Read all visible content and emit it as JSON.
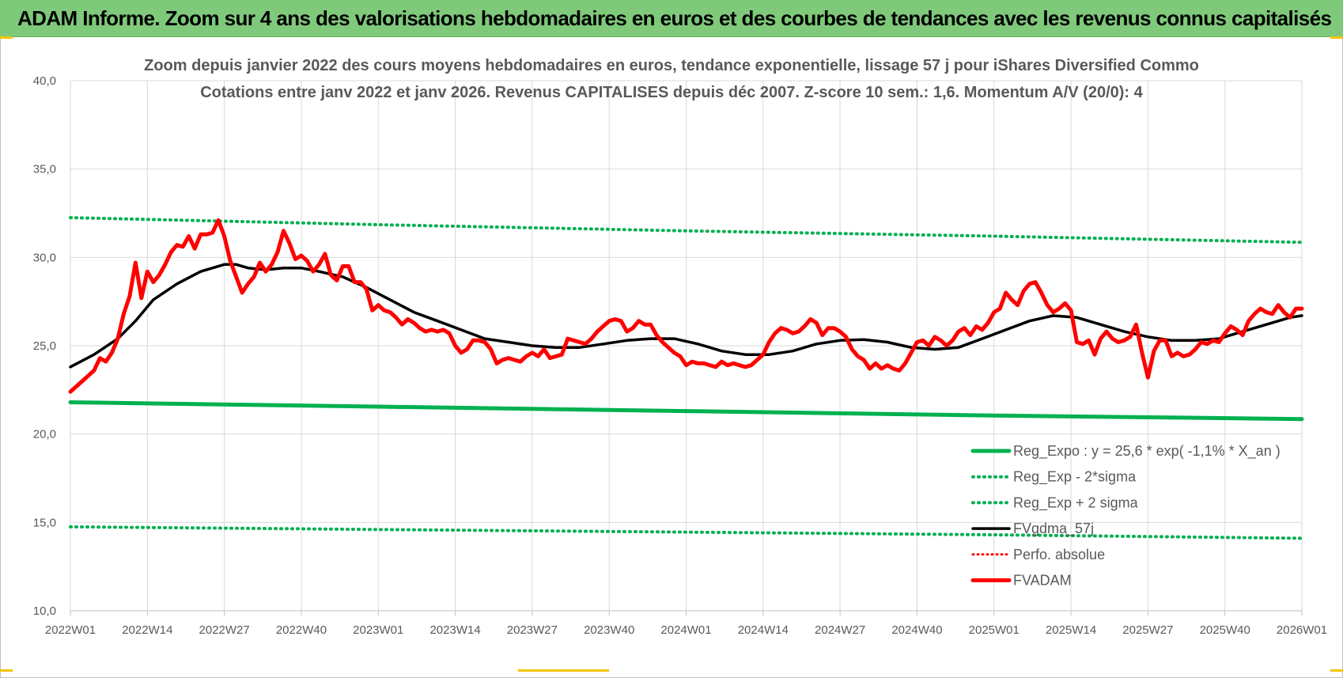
{
  "header": {
    "title": "ADAM Informe. Zoom sur 4 ans des valorisations hebdomadaires en euros et des courbes de tendances avec les revenus connus capitalisés"
  },
  "colors": {
    "banner": "#7fc97a",
    "trend_green": "#00b050",
    "smooth_black": "#000000",
    "price_red": "#ff0000",
    "grid": "#d9d9d9",
    "text": "#595959"
  },
  "chart_data": {
    "type": "line",
    "title_lines": [
      "Zoom depuis janvier 2022 des cours moyens hebdomadaires en euros, tendance exponentielle, lissage 57 j pour iShares Diversified Commo",
      "Cotations entre janv 2022 et janv 2026. Revenus CAPITALISES depuis déc 2007. Z-score 10 sem.: 1,6. Momentum A/V (20/0): 4"
    ],
    "y_range": [
      10,
      40
    ],
    "y_ticks": [
      "10,0",
      "15,0",
      "20,0",
      "25,0",
      "30,0",
      "35,0",
      "40,0"
    ],
    "x_ticks": [
      "2022W01",
      "2022W14",
      "2022W27",
      "2022W40",
      "2023W01",
      "2023W14",
      "2023W27",
      "2023W40",
      "2024W01",
      "2024W14",
      "2024W27",
      "2024W40",
      "2025W01",
      "2025W14",
      "2025W27",
      "2025W40",
      "2026W01"
    ],
    "x_range_weeks": [
      0,
      208
    ],
    "grid": "vertical and horizontal",
    "legend_position": "bottom-right",
    "legend": [
      {
        "label": "Reg_Expo : y = 25,6 * exp( -1,1% *  X_an )",
        "style": "solid-thick",
        "color": "#00b050"
      },
      {
        "label": "Reg_Exp - 2*sigma",
        "style": "dotted",
        "color": "#00b050"
      },
      {
        "label": "Reg_Exp + 2 sigma",
        "style": "dotted",
        "color": "#00b050"
      },
      {
        "label": "FVgdma_57j",
        "style": "solid",
        "color": "#000000"
      },
      {
        "label": "Perfo. absolue",
        "style": "dotted",
        "color": "#ff0000"
      },
      {
        "label": "FVADAM",
        "style": "solid-thick",
        "color": "#ff0000"
      }
    ],
    "series": [
      {
        "name": "Reg_Expo : y = 25,6 * exp( -1,1% *  X_an )",
        "points": [
          [
            0,
            21.8
          ],
          [
            52,
            21.55
          ],
          [
            104,
            21.3
          ],
          [
            156,
            21.05
          ],
          [
            208,
            20.85
          ]
        ]
      },
      {
        "name": "Reg_Exp - 2*sigma",
        "points": [
          [
            0,
            14.75
          ],
          [
            52,
            14.6
          ],
          [
            104,
            14.45
          ],
          [
            156,
            14.3
          ],
          [
            208,
            14.1
          ]
        ]
      },
      {
        "name": "Reg_Exp + 2 sigma",
        "points": [
          [
            0,
            32.25
          ],
          [
            52,
            31.85
          ],
          [
            104,
            31.5
          ],
          [
            156,
            31.2
          ],
          [
            208,
            30.85
          ]
        ]
      },
      {
        "name": "FVgdma_57j",
        "points": [
          [
            0,
            23.8
          ],
          [
            4,
            24.5
          ],
          [
            8,
            25.4
          ],
          [
            11,
            26.4
          ],
          [
            14,
            27.6
          ],
          [
            18,
            28.5
          ],
          [
            22,
            29.2
          ],
          [
            26,
            29.6
          ],
          [
            28,
            29.6
          ],
          [
            30,
            29.4
          ],
          [
            33,
            29.3
          ],
          [
            36,
            29.4
          ],
          [
            39,
            29.4
          ],
          [
            42,
            29.2
          ],
          [
            46,
            28.9
          ],
          [
            50,
            28.3
          ],
          [
            54,
            27.6
          ],
          [
            58,
            26.9
          ],
          [
            62,
            26.4
          ],
          [
            66,
            25.9
          ],
          [
            70,
            25.4
          ],
          [
            74,
            25.2
          ],
          [
            78,
            25.0
          ],
          [
            82,
            24.9
          ],
          [
            86,
            24.9
          ],
          [
            90,
            25.1
          ],
          [
            94,
            25.3
          ],
          [
            98,
            25.4
          ],
          [
            102,
            25.4
          ],
          [
            106,
            25.1
          ],
          [
            110,
            24.7
          ],
          [
            114,
            24.5
          ],
          [
            118,
            24.5
          ],
          [
            122,
            24.7
          ],
          [
            126,
            25.1
          ],
          [
            130,
            25.3
          ],
          [
            134,
            25.35
          ],
          [
            138,
            25.2
          ],
          [
            142,
            24.9
          ],
          [
            146,
            24.8
          ],
          [
            150,
            24.9
          ],
          [
            154,
            25.4
          ],
          [
            158,
            25.9
          ],
          [
            162,
            26.4
          ],
          [
            166,
            26.7
          ],
          [
            170,
            26.6
          ],
          [
            174,
            26.2
          ],
          [
            178,
            25.8
          ],
          [
            182,
            25.5
          ],
          [
            186,
            25.3
          ],
          [
            190,
            25.3
          ],
          [
            194,
            25.4
          ],
          [
            198,
            25.8
          ],
          [
            202,
            26.2
          ],
          [
            206,
            26.6
          ],
          [
            208,
            26.7
          ]
        ]
      },
      {
        "name": "FVADAM",
        "points": [
          [
            0,
            22.4
          ],
          [
            2,
            23.0
          ],
          [
            4,
            23.6
          ],
          [
            5,
            24.3
          ],
          [
            6,
            24.1
          ],
          [
            7,
            24.6
          ],
          [
            8,
            25.4
          ],
          [
            9,
            26.8
          ],
          [
            10,
            27.8
          ],
          [
            11,
            29.7
          ],
          [
            12,
            27.7
          ],
          [
            13,
            29.2
          ],
          [
            14,
            28.6
          ],
          [
            15,
            29.0
          ],
          [
            16,
            29.6
          ],
          [
            17,
            30.3
          ],
          [
            18,
            30.7
          ],
          [
            19,
            30.6
          ],
          [
            20,
            31.2
          ],
          [
            21,
            30.5
          ],
          [
            22,
            31.3
          ],
          [
            23,
            31.3
          ],
          [
            24,
            31.4
          ],
          [
            25,
            32.1
          ],
          [
            26,
            31.2
          ],
          [
            27,
            29.8
          ],
          [
            28,
            28.9
          ],
          [
            29,
            28.0
          ],
          [
            30,
            28.5
          ],
          [
            31,
            28.9
          ],
          [
            32,
            29.7
          ],
          [
            33,
            29.2
          ],
          [
            34,
            29.6
          ],
          [
            35,
            30.3
          ],
          [
            36,
            31.5
          ],
          [
            37,
            30.8
          ],
          [
            38,
            29.9
          ],
          [
            39,
            30.1
          ],
          [
            40,
            29.8
          ],
          [
            41,
            29.2
          ],
          [
            42,
            29.6
          ],
          [
            43,
            30.2
          ],
          [
            44,
            29.0
          ],
          [
            45,
            28.7
          ],
          [
            46,
            29.5
          ],
          [
            47,
            29.5
          ],
          [
            48,
            28.6
          ],
          [
            49,
            28.6
          ],
          [
            50,
            28.2
          ],
          [
            51,
            27.0
          ],
          [
            52,
            27.3
          ],
          [
            53,
            27.0
          ],
          [
            54,
            26.9
          ],
          [
            55,
            26.6
          ],
          [
            56,
            26.2
          ],
          [
            57,
            26.5
          ],
          [
            58,
            26.3
          ],
          [
            59,
            26.0
          ],
          [
            60,
            25.8
          ],
          [
            61,
            25.9
          ],
          [
            62,
            25.8
          ],
          [
            63,
            25.9
          ],
          [
            64,
            25.7
          ],
          [
            65,
            25.0
          ],
          [
            66,
            24.6
          ],
          [
            67,
            24.8
          ],
          [
            68,
            25.3
          ],
          [
            69,
            25.3
          ],
          [
            70,
            25.2
          ],
          [
            71,
            24.8
          ],
          [
            72,
            24.0
          ],
          [
            73,
            24.2
          ],
          [
            74,
            24.3
          ],
          [
            75,
            24.2
          ],
          [
            76,
            24.1
          ],
          [
            77,
            24.4
          ],
          [
            78,
            24.6
          ],
          [
            79,
            24.4
          ],
          [
            80,
            24.8
          ],
          [
            81,
            24.3
          ],
          [
            82,
            24.4
          ],
          [
            83,
            24.5
          ],
          [
            84,
            25.4
          ],
          [
            85,
            25.3
          ],
          [
            86,
            25.2
          ],
          [
            87,
            25.1
          ],
          [
            88,
            25.4
          ],
          [
            89,
            25.8
          ],
          [
            90,
            26.1
          ],
          [
            91,
            26.4
          ],
          [
            92,
            26.5
          ],
          [
            93,
            26.4
          ],
          [
            94,
            25.8
          ],
          [
            95,
            26.0
          ],
          [
            96,
            26.4
          ],
          [
            97,
            26.2
          ],
          [
            98,
            26.2
          ],
          [
            99,
            25.6
          ],
          [
            100,
            25.2
          ],
          [
            101,
            24.9
          ],
          [
            102,
            24.6
          ],
          [
            103,
            24.4
          ],
          [
            104,
            23.9
          ],
          [
            105,
            24.1
          ],
          [
            106,
            24.0
          ],
          [
            107,
            24.0
          ],
          [
            108,
            23.9
          ],
          [
            109,
            23.8
          ],
          [
            110,
            24.1
          ],
          [
            111,
            23.9
          ],
          [
            112,
            24.0
          ],
          [
            113,
            23.9
          ],
          [
            114,
            23.8
          ],
          [
            115,
            23.9
          ],
          [
            116,
            24.2
          ],
          [
            117,
            24.5
          ],
          [
            118,
            25.2
          ],
          [
            119,
            25.7
          ],
          [
            120,
            26.0
          ],
          [
            121,
            25.9
          ],
          [
            122,
            25.7
          ],
          [
            123,
            25.8
          ],
          [
            124,
            26.1
          ],
          [
            125,
            26.5
          ],
          [
            126,
            26.3
          ],
          [
            127,
            25.6
          ],
          [
            128,
            26.0
          ],
          [
            129,
            26.0
          ],
          [
            130,
            25.8
          ],
          [
            131,
            25.5
          ],
          [
            132,
            24.8
          ],
          [
            133,
            24.4
          ],
          [
            134,
            24.2
          ],
          [
            135,
            23.7
          ],
          [
            136,
            24.0
          ],
          [
            137,
            23.7
          ],
          [
            138,
            23.9
          ],
          [
            139,
            23.7
          ],
          [
            140,
            23.6
          ],
          [
            141,
            24.0
          ],
          [
            142,
            24.6
          ],
          [
            143,
            25.2
          ],
          [
            144,
            25.3
          ],
          [
            145,
            25.0
          ],
          [
            146,
            25.5
          ],
          [
            147,
            25.3
          ],
          [
            148,
            25.0
          ],
          [
            149,
            25.3
          ],
          [
            150,
            25.8
          ],
          [
            151,
            26.0
          ],
          [
            152,
            25.6
          ],
          [
            153,
            26.1
          ],
          [
            154,
            25.9
          ],
          [
            155,
            26.3
          ],
          [
            156,
            26.9
          ],
          [
            157,
            27.1
          ],
          [
            158,
            28.0
          ],
          [
            159,
            27.6
          ],
          [
            160,
            27.3
          ],
          [
            161,
            28.1
          ],
          [
            162,
            28.5
          ],
          [
            163,
            28.6
          ],
          [
            164,
            28.0
          ],
          [
            165,
            27.3
          ],
          [
            166,
            26.9
          ],
          [
            167,
            27.1
          ],
          [
            168,
            27.4
          ],
          [
            169,
            27.0
          ],
          [
            170,
            25.2
          ],
          [
            171,
            25.1
          ],
          [
            172,
            25.3
          ],
          [
            173,
            24.5
          ],
          [
            174,
            25.4
          ],
          [
            175,
            25.8
          ],
          [
            176,
            25.4
          ],
          [
            177,
            25.2
          ],
          [
            178,
            25.3
          ],
          [
            179,
            25.5
          ],
          [
            180,
            26.2
          ],
          [
            181,
            24.6
          ],
          [
            182,
            23.2
          ],
          [
            183,
            24.7
          ],
          [
            184,
            25.3
          ],
          [
            185,
            25.3
          ],
          [
            186,
            24.4
          ],
          [
            187,
            24.6
          ],
          [
            188,
            24.4
          ],
          [
            189,
            24.5
          ],
          [
            190,
            24.8
          ],
          [
            191,
            25.2
          ],
          [
            192,
            25.1
          ],
          [
            193,
            25.3
          ],
          [
            194,
            25.2
          ],
          [
            195,
            25.7
          ],
          [
            196,
            26.1
          ],
          [
            197,
            25.9
          ],
          [
            198,
            25.6
          ],
          [
            199,
            26.4
          ],
          [
            200,
            26.8
          ],
          [
            201,
            27.1
          ],
          [
            202,
            26.9
          ],
          [
            203,
            26.8
          ],
          [
            204,
            27.3
          ],
          [
            205,
            26.9
          ],
          [
            206,
            26.6
          ],
          [
            207,
            27.1
          ],
          [
            208,
            27.1
          ]
        ]
      }
    ]
  }
}
